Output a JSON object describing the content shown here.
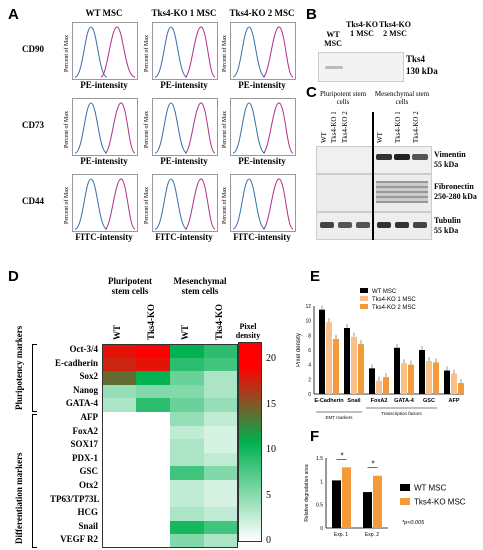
{
  "panelA": {
    "letter": "A",
    "columns": [
      "WT MSC",
      "Tks4-KO 1 MSC",
      "Tks4-KO 2 MSC"
    ],
    "rows": [
      {
        "marker": "CD90",
        "xlabel": "PE-intensity"
      },
      {
        "marker": "CD73",
        "xlabel": "PE-intensity"
      },
      {
        "marker": "CD44",
        "xlabel": "FITC-intensity"
      }
    ],
    "ylabel": "Percent of Max"
  },
  "panelB": {
    "letter": "B",
    "lanes": [
      "WT MSC",
      "Tks4-KO 1 MSC",
      "Tks4-KO 2 MSC"
    ],
    "band_name": "Tks4",
    "band_size": "130 kDa"
  },
  "panelC": {
    "letter": "C",
    "group_left": "Pluripotent stem cells",
    "group_right": "Mesenchymal stem cells",
    "lanes": [
      "WT",
      "Tks4-KO 1",
      "Tks4-KO 2",
      "WT",
      "Tks4-KO 1",
      "Tks4-KO 2"
    ],
    "blots": [
      {
        "name": "Vimentin",
        "size": "55 kDa"
      },
      {
        "name": "Fibronectin",
        "size": "250-280 kDa"
      },
      {
        "name": "Tubulin",
        "size": "55 kDa"
      }
    ]
  },
  "panelD": {
    "letter": "D",
    "group_left": "Pluripotent stem cells",
    "group_right": "Mesenchymal stem cells",
    "columns": [
      "WT",
      "Tks4-KO",
      "WT",
      "Tks4-KO"
    ],
    "section_top": "Pluripotency markers",
    "section_bottom": "Differentiation markers",
    "rows": [
      "Oct-3/4",
      "E-cadherin",
      "Sox2",
      "Nanog",
      "GATA-4",
      "AFP",
      "FoxA2",
      "SOX17",
      "PDX-1",
      "GSC",
      "Otx2",
      "TP63/TP73L",
      "HCG",
      "Snail",
      "VEGF R2"
    ],
    "values": [
      [
        21,
        22,
        12,
        10
      ],
      [
        20,
        21,
        10,
        9
      ],
      [
        16,
        12,
        7,
        4
      ],
      [
        5,
        6,
        6,
        4
      ],
      [
        4,
        10,
        7,
        5
      ],
      [
        0,
        0,
        5,
        3
      ],
      [
        0,
        0,
        3,
        2
      ],
      [
        0,
        0,
        4,
        2
      ],
      [
        0,
        0,
        4,
        3
      ],
      [
        0,
        0,
        9,
        6
      ],
      [
        0,
        0,
        3,
        2
      ],
      [
        0,
        0,
        3,
        2
      ],
      [
        0,
        0,
        4,
        3
      ],
      [
        0,
        0,
        11,
        9
      ],
      [
        0,
        0,
        6,
        4
      ]
    ],
    "colorbar_label": "Pixel density",
    "colorbar_ticks": [
      "20",
      "15",
      "10",
      "5",
      "0"
    ],
    "colors": {
      "low": "#ffffff",
      "mid": "#00b050",
      "high": "#ff0000"
    }
  },
  "panelE": {
    "letter": "E",
    "chart_data": {
      "type": "bar",
      "ylabel": "Pixel density",
      "ylim": [
        0,
        12
      ],
      "yticks": [
        "0",
        "2",
        "4",
        "6",
        "8",
        "10",
        "12"
      ],
      "categories": [
        "E-Cadherin",
        "Snail",
        "FoxA2",
        "GATA-4",
        "GSC",
        "AFP"
      ],
      "series": [
        {
          "name": "WT MSC",
          "color": "#000000",
          "values": [
            11.5,
            9.0,
            3.5,
            6.3,
            6.0,
            3.2
          ]
        },
        {
          "name": "Tks4-KO 1 MSC",
          "color": "#f9c08a",
          "values": [
            9.8,
            7.8,
            1.8,
            4.2,
            4.5,
            2.8
          ]
        },
        {
          "name": "Tks4-KO 2 MSC",
          "color": "#f59a3a",
          "values": [
            7.5,
            6.8,
            2.3,
            4.0,
            4.3,
            1.5
          ]
        }
      ],
      "group_labels": [
        "EMT markers",
        "Transcription factors"
      ]
    }
  },
  "panelF": {
    "letter": "F",
    "chart_data": {
      "type": "bar",
      "ylabel": "Relative degradation area",
      "ylim": [
        0,
        1.5
      ],
      "yticks": [
        "0",
        "0.5",
        "1",
        "1.5"
      ],
      "categories": [
        "Exp. 1",
        "Exp. 2"
      ],
      "series": [
        {
          "name": "WT MSC",
          "color": "#000000",
          "values": [
            1.02,
            0.77
          ]
        },
        {
          "name": "Tks4-KO MSC",
          "color": "#f59a3a",
          "values": [
            1.3,
            1.12
          ]
        }
      ],
      "significance": [
        "*",
        "*"
      ],
      "note": "*p<0.005"
    }
  }
}
